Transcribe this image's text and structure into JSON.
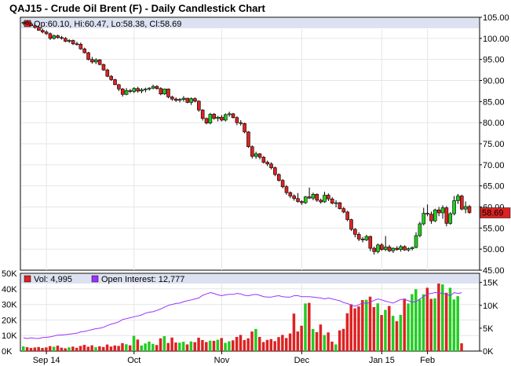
{
  "title": "QAJ15 - Crude Oil Brent (F) - Daily Candlestick Chart",
  "price_legend": "Op:60.10, Hi:60.47, Lo:58.38, Cl:58.69",
  "volume_legend": "Vol: 4,995",
  "oi_legend": "Open Interest: 12,777",
  "last_price_label": "58.69",
  "colors": {
    "up": "#22cc22",
    "down": "#dd2222",
    "oi_line": "#9933ff",
    "legend_bg": "#dde2f2",
    "grid": "#e6e6e6",
    "frame": "#000000"
  },
  "chart_data": [
    {
      "type": "candlestick",
      "x_labels": [
        "Sep 14",
        "Oct",
        "Nov",
        "Dec",
        "Jan 15",
        "Feb"
      ],
      "y_ticks": [
        45,
        50,
        55,
        60,
        65,
        70,
        75,
        80,
        85,
        90,
        95,
        100,
        105
      ],
      "y_tick_labels": [
        "45.00",
        "50.00",
        "55.00",
        "60.00",
        "65.00",
        "70.00",
        "75.00",
        "80.00",
        "85.00",
        "90.00",
        "95.00",
        "100.00",
        "105.00"
      ],
      "ylim": [
        45,
        105
      ],
      "last": {
        "open": 60.1,
        "high": 60.47,
        "low": 58.38,
        "close": 58.69
      },
      "candles": [
        [
          103.6,
          104.0,
          103.2,
          103.8
        ],
        [
          103.8,
          104.2,
          103.2,
          103.4
        ],
        [
          103.4,
          103.9,
          102.9,
          103.0
        ],
        [
          103.0,
          103.4,
          102.3,
          102.6
        ],
        [
          102.6,
          103.0,
          101.8,
          101.9
        ],
        [
          101.9,
          102.3,
          101.2,
          101.5
        ],
        [
          101.5,
          101.9,
          100.8,
          101.1
        ],
        [
          101.1,
          101.4,
          99.6,
          100.0
        ],
        [
          100.0,
          100.9,
          99.7,
          100.6
        ],
        [
          100.6,
          100.9,
          99.9,
          100.2
        ],
        [
          100.2,
          100.6,
          99.7,
          100.0
        ],
        [
          100.0,
          100.3,
          99.1,
          99.3
        ],
        [
          99.3,
          99.8,
          98.9,
          99.5
        ],
        [
          99.5,
          99.7,
          98.4,
          98.7
        ],
        [
          98.7,
          99.2,
          98.3,
          98.6
        ],
        [
          98.6,
          99.0,
          97.3,
          97.5
        ],
        [
          97.5,
          97.8,
          96.4,
          96.6
        ],
        [
          96.6,
          96.8,
          94.8,
          95.0
        ],
        [
          95.0,
          95.6,
          94.0,
          94.4
        ],
        [
          94.4,
          95.3,
          93.9,
          94.9
        ],
        [
          94.9,
          95.1,
          93.6,
          93.8
        ],
        [
          93.8,
          94.0,
          92.3,
          92.5
        ],
        [
          92.5,
          92.8,
          90.8,
          91.0
        ],
        [
          91.0,
          91.3,
          89.9,
          90.2
        ],
        [
          90.2,
          90.4,
          88.9,
          89.0
        ],
        [
          89.0,
          89.2,
          87.5,
          88.0
        ],
        [
          88.0,
          88.2,
          86.2,
          86.7
        ],
        [
          86.7,
          88.2,
          86.5,
          87.6
        ],
        [
          87.6,
          88.0,
          87.0,
          87.4
        ],
        [
          87.4,
          88.4,
          87.0,
          88.1
        ],
        [
          88.1,
          88.5,
          87.1,
          87.5
        ],
        [
          87.5,
          88.2,
          87.0,
          87.8
        ],
        [
          87.8,
          88.3,
          87.2,
          88.0
        ],
        [
          88.0,
          88.4,
          87.6,
          88.2
        ],
        [
          88.2,
          89.0,
          87.9,
          88.6
        ],
        [
          88.6,
          88.9,
          87.8,
          88.1
        ],
        [
          88.1,
          88.4,
          86.5,
          86.8
        ],
        [
          86.8,
          88.1,
          86.6,
          88.0
        ],
        [
          88.0,
          88.1,
          85.8,
          86.1
        ],
        [
          86.1,
          86.4,
          85.2,
          85.6
        ],
        [
          85.6,
          86.0,
          84.9,
          85.3
        ],
        [
          85.3,
          85.8,
          84.8,
          85.5
        ],
        [
          85.5,
          86.3,
          85.0,
          85.8
        ],
        [
          85.8,
          85.9,
          84.6,
          84.8
        ],
        [
          84.8,
          86.0,
          84.2,
          85.7
        ],
        [
          85.7,
          86.0,
          84.8,
          85.1
        ],
        [
          85.1,
          85.3,
          82.6,
          83.0
        ],
        [
          83.0,
          83.2,
          80.5,
          81.0
        ],
        [
          81.0,
          81.2,
          79.6,
          79.9
        ],
        [
          79.9,
          82.3,
          79.6,
          82.0
        ],
        [
          82.0,
          82.3,
          80.7,
          81.0
        ],
        [
          81.0,
          81.6,
          80.3,
          81.3
        ],
        [
          81.3,
          81.8,
          80.3,
          80.6
        ],
        [
          80.6,
          82.2,
          80.3,
          81.9
        ],
        [
          81.9,
          82.6,
          81.4,
          82.1
        ],
        [
          82.1,
          82.3,
          81.0,
          81.2
        ],
        [
          81.2,
          81.5,
          79.4,
          80.0
        ],
        [
          80.0,
          80.6,
          79.3,
          79.8
        ],
        [
          79.8,
          80.0,
          77.5,
          77.8
        ],
        [
          77.8,
          78.0,
          74.0,
          74.3
        ],
        [
          74.3,
          74.6,
          71.5,
          72.0
        ],
        [
          72.0,
          73.1,
          71.4,
          72.6
        ],
        [
          72.6,
          72.8,
          71.3,
          71.8
        ],
        [
          71.8,
          72.1,
          70.3,
          70.6
        ],
        [
          70.6,
          71.0,
          69.7,
          70.2
        ],
        [
          70.2,
          70.6,
          68.9,
          69.3
        ],
        [
          69.3,
          69.6,
          67.3,
          67.7
        ],
        [
          67.7,
          68.0,
          66.0,
          66.3
        ],
        [
          66.3,
          66.6,
          64.4,
          64.8
        ],
        [
          64.8,
          65.2,
          62.9,
          63.4
        ],
        [
          63.4,
          63.7,
          62.1,
          62.6
        ],
        [
          62.6,
          63.0,
          61.5,
          62.0
        ],
        [
          62.0,
          63.3,
          61.0,
          61.3
        ],
        [
          61.3,
          61.6,
          60.5,
          61.0
        ],
        [
          61.0,
          62.6,
          60.7,
          62.4
        ],
        [
          62.4,
          64.6,
          61.9,
          62.1
        ],
        [
          62.1,
          63.4,
          61.6,
          63.0
        ],
        [
          63.0,
          63.2,
          61.2,
          61.6
        ],
        [
          61.6,
          62.0,
          60.8,
          61.2
        ],
        [
          61.2,
          63.6,
          61.0,
          62.8
        ],
        [
          62.8,
          63.2,
          61.4,
          61.9
        ],
        [
          61.9,
          62.3,
          60.6,
          60.9
        ],
        [
          60.9,
          61.6,
          59.9,
          61.0
        ],
        [
          61.0,
          61.2,
          59.4,
          59.6
        ],
        [
          59.6,
          60.0,
          58.5,
          58.8
        ],
        [
          58.8,
          59.1,
          56.6,
          57.0
        ],
        [
          57.0,
          57.2,
          54.3,
          54.7
        ],
        [
          54.7,
          55.0,
          52.8,
          53.5
        ],
        [
          53.5,
          54.0,
          51.9,
          52.4
        ],
        [
          52.4,
          52.9,
          51.6,
          52.2
        ],
        [
          52.2,
          53.4,
          51.9,
          53.0
        ],
        [
          53.0,
          53.2,
          49.5,
          50.2
        ],
        [
          50.2,
          50.6,
          48.7,
          49.4
        ],
        [
          49.4,
          51.3,
          49.0,
          51.0
        ],
        [
          51.0,
          51.4,
          49.6,
          49.9
        ],
        [
          49.9,
          53.1,
          49.5,
          50.5
        ],
        [
          50.5,
          51.0,
          49.3,
          49.6
        ],
        [
          49.6,
          50.4,
          49.1,
          50.2
        ],
        [
          50.2,
          50.7,
          49.6,
          49.9
        ],
        [
          49.9,
          51.0,
          49.4,
          50.6
        ],
        [
          50.6,
          50.9,
          49.6,
          49.8
        ],
        [
          49.8,
          50.4,
          49.4,
          50.1
        ],
        [
          50.1,
          50.6,
          49.7,
          50.4
        ],
        [
          50.4,
          54.0,
          50.2,
          53.2
        ],
        [
          53.2,
          56.5,
          52.8,
          56.0
        ],
        [
          56.0,
          59.8,
          55.6,
          58.5
        ],
        [
          58.5,
          60.6,
          57.8,
          58.3
        ],
        [
          58.3,
          58.9,
          56.0,
          56.7
        ],
        [
          56.7,
          59.6,
          56.4,
          59.3
        ],
        [
          59.3,
          60.0,
          57.8,
          58.6
        ],
        [
          58.6,
          60.4,
          57.2,
          59.8
        ],
        [
          59.8,
          60.2,
          55.4,
          56.1
        ],
        [
          56.1,
          58.8,
          55.8,
          58.4
        ],
        [
          58.4,
          62.6,
          58.0,
          61.5
        ],
        [
          61.5,
          63.1,
          60.7,
          62.6
        ],
        [
          62.6,
          62.9,
          59.2,
          59.5
        ],
        [
          59.5,
          61.3,
          58.5,
          60.1
        ],
        [
          60.1,
          60.47,
          58.38,
          58.69
        ]
      ]
    },
    {
      "type": "bar+line",
      "volume_ylim": [
        0,
        50000
      ],
      "volume_ticks": [
        0,
        10000,
        20000,
        30000,
        40000,
        50000
      ],
      "volume_tick_labels": [
        "0K",
        "10K",
        "20K",
        "30K",
        "40K",
        "50K"
      ],
      "oi_ylim": [
        0,
        17000
      ],
      "oi_ticks": [
        0,
        5000,
        10000,
        15000
      ],
      "oi_tick_labels": [
        "0K",
        "5K",
        "10K",
        "15K"
      ],
      "volume": [
        3000,
        2500,
        2000,
        2300,
        2600,
        2000,
        2400,
        3200,
        2800,
        3500,
        2200,
        1800,
        2400,
        2900,
        2100,
        3300,
        4000,
        2800,
        3700,
        2500,
        3100,
        2600,
        4200,
        2900,
        3600,
        3300,
        5100,
        4400,
        3700,
        9800,
        7400,
        3600,
        4900,
        6100,
        4600,
        3900,
        8200,
        9600,
        5200,
        8700,
        5500,
        5400,
        6000,
        4300,
        6200,
        5700,
        8600,
        7100,
        5800,
        6700,
        6600,
        7300,
        8400,
        5300,
        6300,
        6900,
        9100,
        10400,
        7100,
        8200,
        12600,
        14200,
        9100,
        5800,
        7200,
        7700,
        6400,
        9000,
        10400,
        8400,
        11300,
        24100,
        12600,
        16300,
        30600,
        31000,
        14200,
        12200,
        17100,
        10300,
        12000,
        6100,
        4300,
        13300,
        14300,
        24300,
        30100,
        27500,
        28700,
        32800,
        33000,
        35000,
        28300,
        30700,
        23200,
        26500,
        29000,
        22700,
        19200,
        23300,
        33700,
        30600,
        36600,
        39800,
        33200,
        36500,
        40700,
        33600,
        33900,
        44900,
        42900,
        37500,
        40700,
        33200,
        35300,
        4995
      ],
      "open_interest": [
        2900,
        2750,
        2900,
        2800,
        2750,
        2950,
        3000,
        3100,
        3300,
        3500,
        3500,
        3600,
        3700,
        3800,
        3900,
        4200,
        4300,
        4500,
        4700,
        4900,
        5000,
        5200,
        5600,
        5900,
        6100,
        6400,
        6900,
        7100,
        7300,
        7500,
        7700,
        7900,
        8300,
        8500,
        8600,
        8900,
        9200,
        9600,
        10000,
        10200,
        10400,
        10500,
        10800,
        11000,
        11200,
        11400,
        11600,
        12200,
        12500,
        12800,
        12600,
        12300,
        12100,
        12300,
        12400,
        12400,
        12600,
        12500,
        12200,
        12100,
        12300,
        12400,
        12200,
        11900,
        11800,
        11800,
        12000,
        12100,
        11900,
        11800,
        11800,
        12100,
        12100,
        11900,
        11900,
        11900,
        11800,
        11700,
        11600,
        11400,
        11600,
        11400,
        11200,
        11000,
        10600,
        10400,
        10000,
        9800,
        10100,
        10600,
        10400,
        10700,
        11100,
        11400,
        11200,
        10900,
        10700,
        10500,
        10900,
        11300,
        11300,
        11000,
        10700,
        10800,
        11400,
        11900,
        12500,
        12600,
        12800,
        12700,
        12600,
        12400,
        12100,
        12800,
        12600,
        12777
      ]
    }
  ]
}
